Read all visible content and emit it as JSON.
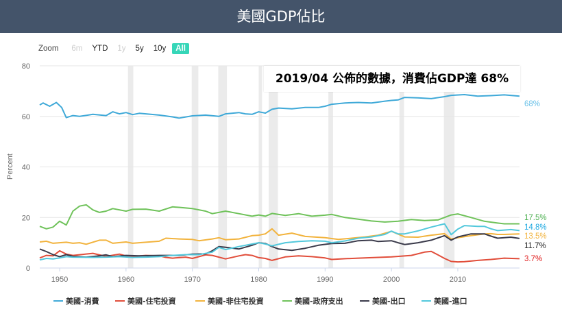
{
  "header": {
    "title": "美國GDP佔比"
  },
  "range_selector": {
    "zoom_label": "Zoom",
    "buttons": [
      {
        "label": "6m",
        "state": "disabled"
      },
      {
        "label": "YTD",
        "state": "normal"
      },
      {
        "label": "1y",
        "state": "disabled"
      },
      {
        "label": "5y",
        "state": "normal"
      },
      {
        "label": "10y",
        "state": "normal"
      },
      {
        "label": "All",
        "state": "active"
      }
    ]
  },
  "callout": {
    "text": "2019/04 公佈的數據，消費佔GDP達 68%"
  },
  "chart_data": {
    "type": "line",
    "ylabel": "Percent",
    "xlabel": "",
    "xlim": [
      1947,
      2019.3
    ],
    "ylim": [
      0,
      80
    ],
    "y_ticks": [
      "0",
      "20",
      "40",
      "60",
      "80"
    ],
    "x_ticks": [
      "1950",
      "1960",
      "1970",
      "1980",
      "1990",
      "2000",
      "2010"
    ],
    "recession_bands": [
      [
        1960.3,
        1961.1
      ],
      [
        1969.9,
        1970.9
      ],
      [
        1973.9,
        1975.2
      ],
      [
        1980.0,
        1980.5
      ],
      [
        1981.5,
        1982.9
      ],
      [
        1990.5,
        1991.2
      ],
      [
        2001.2,
        2001.9
      ],
      [
        2007.9,
        2009.5
      ]
    ],
    "grid": true,
    "legend_position": "bottom",
    "series": [
      {
        "name": "美國-消費",
        "color": "#3fa9d8",
        "end_label": "68%",
        "end_label_color": "#67c0e8",
        "points": [
          [
            1947,
            64.5
          ],
          [
            1947.5,
            65.3
          ],
          [
            1948.5,
            64.0
          ],
          [
            1949.5,
            65.5
          ],
          [
            1950.3,
            63.5
          ],
          [
            1951,
            59.5
          ],
          [
            1952,
            60.3
          ],
          [
            1953,
            60.0
          ],
          [
            1955,
            60.8
          ],
          [
            1957,
            60.3
          ],
          [
            1958,
            61.8
          ],
          [
            1959,
            61.0
          ],
          [
            1960,
            61.5
          ],
          [
            1961,
            60.7
          ],
          [
            1962,
            61.2
          ],
          [
            1963,
            61.0
          ],
          [
            1965,
            60.5
          ],
          [
            1967,
            59.8
          ],
          [
            1968,
            59.3
          ],
          [
            1970,
            60.2
          ],
          [
            1972,
            60.5
          ],
          [
            1974,
            60.0
          ],
          [
            1975,
            61.0
          ],
          [
            1977,
            61.5
          ],
          [
            1978,
            61.0
          ],
          [
            1979,
            60.8
          ],
          [
            1980,
            61.8
          ],
          [
            1981,
            61.3
          ],
          [
            1982,
            62.8
          ],
          [
            1983,
            63.3
          ],
          [
            1985,
            63.0
          ],
          [
            1987,
            63.5
          ],
          [
            1989,
            63.5
          ],
          [
            1990,
            64.0
          ],
          [
            1991,
            64.8
          ],
          [
            1993,
            65.3
          ],
          [
            1995,
            65.5
          ],
          [
            1997,
            65.3
          ],
          [
            1999,
            66.0
          ],
          [
            2000,
            66.3
          ],
          [
            2001,
            66.5
          ],
          [
            2002,
            67.5
          ],
          [
            2004,
            67.3
          ],
          [
            2006,
            67.0
          ],
          [
            2008,
            67.8
          ],
          [
            2009,
            68.3
          ],
          [
            2011,
            68.6
          ],
          [
            2013,
            68.0
          ],
          [
            2015,
            68.2
          ],
          [
            2017,
            68.5
          ],
          [
            2019.3,
            68.0
          ]
        ]
      },
      {
        "name": "美國-住宅投資",
        "color": "#e14d3a",
        "end_label": "3.7%",
        "end_label_color": "#e02020",
        "points": [
          [
            1947,
            4.0
          ],
          [
            1948,
            5.0
          ],
          [
            1949,
            4.8
          ],
          [
            1950,
            6.8
          ],
          [
            1951,
            5.5
          ],
          [
            1952,
            5.0
          ],
          [
            1955,
            5.8
          ],
          [
            1957,
            4.6
          ],
          [
            1959,
            5.5
          ],
          [
            1960,
            4.8
          ],
          [
            1961,
            4.6
          ],
          [
            1963,
            5.0
          ],
          [
            1965,
            4.8
          ],
          [
            1966,
            4.2
          ],
          [
            1967,
            3.9
          ],
          [
            1969,
            4.3
          ],
          [
            1970,
            3.8
          ],
          [
            1972,
            5.2
          ],
          [
            1973,
            5.0
          ],
          [
            1975,
            3.6
          ],
          [
            1977,
            4.8
          ],
          [
            1978,
            5.3
          ],
          [
            1979,
            5.0
          ],
          [
            1980,
            4.1
          ],
          [
            1981,
            3.8
          ],
          [
            1982,
            3.0
          ],
          [
            1984,
            4.4
          ],
          [
            1986,
            4.8
          ],
          [
            1988,
            4.5
          ],
          [
            1990,
            4.0
          ],
          [
            1991,
            3.4
          ],
          [
            1993,
            3.7
          ],
          [
            1995,
            3.9
          ],
          [
            1998,
            4.2
          ],
          [
            2000,
            4.4
          ],
          [
            2003,
            5.0
          ],
          [
            2005,
            6.3
          ],
          [
            2006,
            6.6
          ],
          [
            2007,
            5.2
          ],
          [
            2008,
            3.8
          ],
          [
            2009,
            2.6
          ],
          [
            2010,
            2.4
          ],
          [
            2011,
            2.5
          ],
          [
            2013,
            3.0
          ],
          [
            2015,
            3.4
          ],
          [
            2017,
            3.9
          ],
          [
            2019.3,
            3.7
          ]
        ]
      },
      {
        "name": "美國-非住宅投資",
        "color": "#f2b33d",
        "end_label": "13.5%",
        "end_label_color": "#f2b33d",
        "points": [
          [
            1947,
            10.3
          ],
          [
            1948,
            10.6
          ],
          [
            1949,
            9.8
          ],
          [
            1950,
            10.0
          ],
          [
            1951,
            10.2
          ],
          [
            1952,
            9.8
          ],
          [
            1953,
            10.0
          ],
          [
            1954,
            9.4
          ],
          [
            1956,
            11.0
          ],
          [
            1957,
            11.0
          ],
          [
            1958,
            9.8
          ],
          [
            1960,
            10.3
          ],
          [
            1961,
            9.8
          ],
          [
            1963,
            10.2
          ],
          [
            1965,
            10.6
          ],
          [
            1966,
            11.8
          ],
          [
            1968,
            11.5
          ],
          [
            1970,
            11.3
          ],
          [
            1971,
            10.8
          ],
          [
            1973,
            11.5
          ],
          [
            1974,
            12.0
          ],
          [
            1975,
            11.2
          ],
          [
            1977,
            11.5
          ],
          [
            1979,
            12.8
          ],
          [
            1980,
            13.0
          ],
          [
            1981,
            13.5
          ],
          [
            1982,
            15.5
          ],
          [
            1983,
            13.0
          ],
          [
            1985,
            13.8
          ],
          [
            1987,
            12.5
          ],
          [
            1990,
            12.0
          ],
          [
            1992,
            11.3
          ],
          [
            1994,
            11.8
          ],
          [
            1996,
            12.3
          ],
          [
            1998,
            13.0
          ],
          [
            2000,
            14.5
          ],
          [
            2001,
            13.4
          ],
          [
            2002,
            12.3
          ],
          [
            2004,
            12.2
          ],
          [
            2006,
            13.0
          ],
          [
            2008,
            13.6
          ],
          [
            2009,
            11.5
          ],
          [
            2010,
            12.0
          ],
          [
            2012,
            12.8
          ],
          [
            2014,
            13.5
          ],
          [
            2015,
            13.6
          ],
          [
            2016,
            13.3
          ],
          [
            2017,
            13.3
          ],
          [
            2019.3,
            13.5
          ]
        ]
      },
      {
        "name": "美國-政府支出",
        "color": "#6fc25a",
        "end_label": "17.5%",
        "end_label_color": "#4caf50",
        "points": [
          [
            1947,
            16.5
          ],
          [
            1948,
            15.5
          ],
          [
            1949,
            16.2
          ],
          [
            1950,
            18.5
          ],
          [
            1951,
            17.0
          ],
          [
            1952,
            22.5
          ],
          [
            1953,
            24.5
          ],
          [
            1954,
            25.0
          ],
          [
            1955,
            23.0
          ],
          [
            1956,
            22.0
          ],
          [
            1957,
            22.5
          ],
          [
            1958,
            23.5
          ],
          [
            1960,
            22.5
          ],
          [
            1961,
            23.2
          ],
          [
            1963,
            23.3
          ],
          [
            1965,
            22.5
          ],
          [
            1967,
            24.2
          ],
          [
            1968,
            24.0
          ],
          [
            1970,
            23.5
          ],
          [
            1972,
            22.5
          ],
          [
            1973,
            21.5
          ],
          [
            1975,
            22.5
          ],
          [
            1977,
            21.5
          ],
          [
            1979,
            20.5
          ],
          [
            1980,
            21.0
          ],
          [
            1981,
            20.5
          ],
          [
            1982,
            21.6
          ],
          [
            1984,
            20.8
          ],
          [
            1986,
            21.5
          ],
          [
            1988,
            20.5
          ],
          [
            1990,
            20.9
          ],
          [
            1991,
            21.2
          ],
          [
            1993,
            20.0
          ],
          [
            1995,
            19.3
          ],
          [
            1997,
            18.6
          ],
          [
            1999,
            18.2
          ],
          [
            2001,
            18.5
          ],
          [
            2003,
            19.2
          ],
          [
            2005,
            18.8
          ],
          [
            2007,
            19.0
          ],
          [
            2009,
            21.0
          ],
          [
            2010,
            21.4
          ],
          [
            2012,
            20.0
          ],
          [
            2014,
            18.5
          ],
          [
            2016,
            17.8
          ],
          [
            2017,
            17.5
          ],
          [
            2019.3,
            17.5
          ]
        ]
      },
      {
        "name": "美國-出口",
        "color": "#3a3a4a",
        "end_label": "11.7%",
        "end_label_color": "#222222",
        "points": [
          [
            1947,
            7.5
          ],
          [
            1948,
            6.5
          ],
          [
            1949,
            5.3
          ],
          [
            1950,
            4.5
          ],
          [
            1951,
            5.3
          ],
          [
            1952,
            4.6
          ],
          [
            1954,
            4.3
          ],
          [
            1956,
            4.8
          ],
          [
            1957,
            5.2
          ],
          [
            1958,
            4.5
          ],
          [
            1960,
            5.0
          ],
          [
            1962,
            4.8
          ],
          [
            1965,
            5.0
          ],
          [
            1968,
            5.0
          ],
          [
            1970,
            5.5
          ],
          [
            1972,
            5.6
          ],
          [
            1973,
            6.8
          ],
          [
            1974,
            8.5
          ],
          [
            1975,
            8.2
          ],
          [
            1977,
            7.5
          ],
          [
            1979,
            9.0
          ],
          [
            1980,
            10.0
          ],
          [
            1981,
            9.7
          ],
          [
            1982,
            8.5
          ],
          [
            1983,
            7.5
          ],
          [
            1985,
            7.0
          ],
          [
            1987,
            7.8
          ],
          [
            1989,
            9.0
          ],
          [
            1991,
            9.7
          ],
          [
            1993,
            9.8
          ],
          [
            1995,
            10.8
          ],
          [
            1997,
            11.0
          ],
          [
            1998,
            10.5
          ],
          [
            2000,
            10.8
          ],
          [
            2001,
            10.0
          ],
          [
            2002,
            9.3
          ],
          [
            2004,
            10.0
          ],
          [
            2006,
            11.0
          ],
          [
            2008,
            12.8
          ],
          [
            2009,
            11.0
          ],
          [
            2010,
            12.3
          ],
          [
            2012,
            13.5
          ],
          [
            2014,
            13.5
          ],
          [
            2015,
            12.6
          ],
          [
            2016,
            11.8
          ],
          [
            2018,
            12.2
          ],
          [
            2019.3,
            11.7
          ]
        ]
      },
      {
        "name": "美國-進口",
        "color": "#52c8dc",
        "end_label": "14.8%",
        "end_label_color": "#1aa7e0",
        "points": [
          [
            1947,
            3.2
          ],
          [
            1948,
            3.8
          ],
          [
            1949,
            3.6
          ],
          [
            1950,
            4.0
          ],
          [
            1951,
            4.5
          ],
          [
            1952,
            4.3
          ],
          [
            1955,
            4.2
          ],
          [
            1957,
            4.3
          ],
          [
            1959,
            4.5
          ],
          [
            1961,
            4.2
          ],
          [
            1963,
            4.3
          ],
          [
            1965,
            4.5
          ],
          [
            1967,
            5.0
          ],
          [
            1969,
            5.3
          ],
          [
            1971,
            5.3
          ],
          [
            1973,
            6.3
          ],
          [
            1974,
            8.2
          ],
          [
            1975,
            7.3
          ],
          [
            1977,
            8.5
          ],
          [
            1979,
            9.5
          ],
          [
            1980,
            10.0
          ],
          [
            1981,
            9.5
          ],
          [
            1982,
            8.8
          ],
          [
            1984,
            10.0
          ],
          [
            1986,
            10.5
          ],
          [
            1988,
            10.8
          ],
          [
            1990,
            10.6
          ],
          [
            1991,
            10.0
          ],
          [
            1993,
            10.7
          ],
          [
            1995,
            11.8
          ],
          [
            1997,
            12.3
          ],
          [
            1999,
            13.3
          ],
          [
            2000,
            14.6
          ],
          [
            2001,
            13.5
          ],
          [
            2002,
            13.5
          ],
          [
            2004,
            14.7
          ],
          [
            2006,
            16.2
          ],
          [
            2008,
            17.5
          ],
          [
            2009,
            13.2
          ],
          [
            2010,
            15.4
          ],
          [
            2011,
            16.8
          ],
          [
            2013,
            16.5
          ],
          [
            2014,
            16.5
          ],
          [
            2015,
            15.5
          ],
          [
            2016,
            14.8
          ],
          [
            2018,
            15.2
          ],
          [
            2019.3,
            14.8
          ]
        ]
      }
    ]
  }
}
